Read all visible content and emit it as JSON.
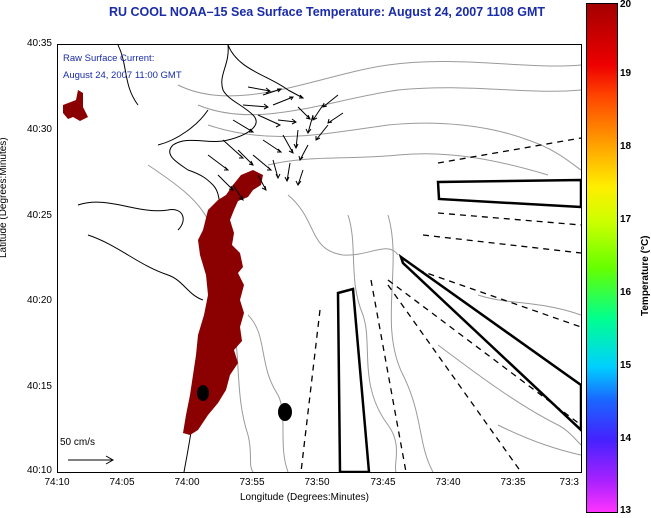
{
  "title": "RU COOL  NOAA–15  Sea Surface Temperature:  August 24, 2007 1108 GMT",
  "current_note": {
    "line1": "Raw Surface Current:",
    "line2": "August 24, 2007 11:00 GMT"
  },
  "scale_label": "50 cm/s",
  "axes": {
    "ylabel": "Latitude (Degrees:Minutes)",
    "xlabel": "Longitude (Degrees:Minutes)",
    "yticks": [
      "40:35",
      "40:30",
      "40:25",
      "40:20",
      "40:15",
      "40:10"
    ],
    "xticks": [
      "74:10",
      "74:05",
      "74:00",
      "73:55",
      "73:50",
      "73:45",
      "73:40",
      "73:35",
      "73:3"
    ]
  },
  "colorbar": {
    "label": "Temperature (°C)",
    "ticks": [
      "20",
      "19",
      "18",
      "17",
      "16",
      "15",
      "14",
      "13"
    ],
    "range": [
      13,
      20
    ]
  },
  "colors": {
    "title": "#1a2ca8",
    "sst_warm": "#8b0000"
  }
}
